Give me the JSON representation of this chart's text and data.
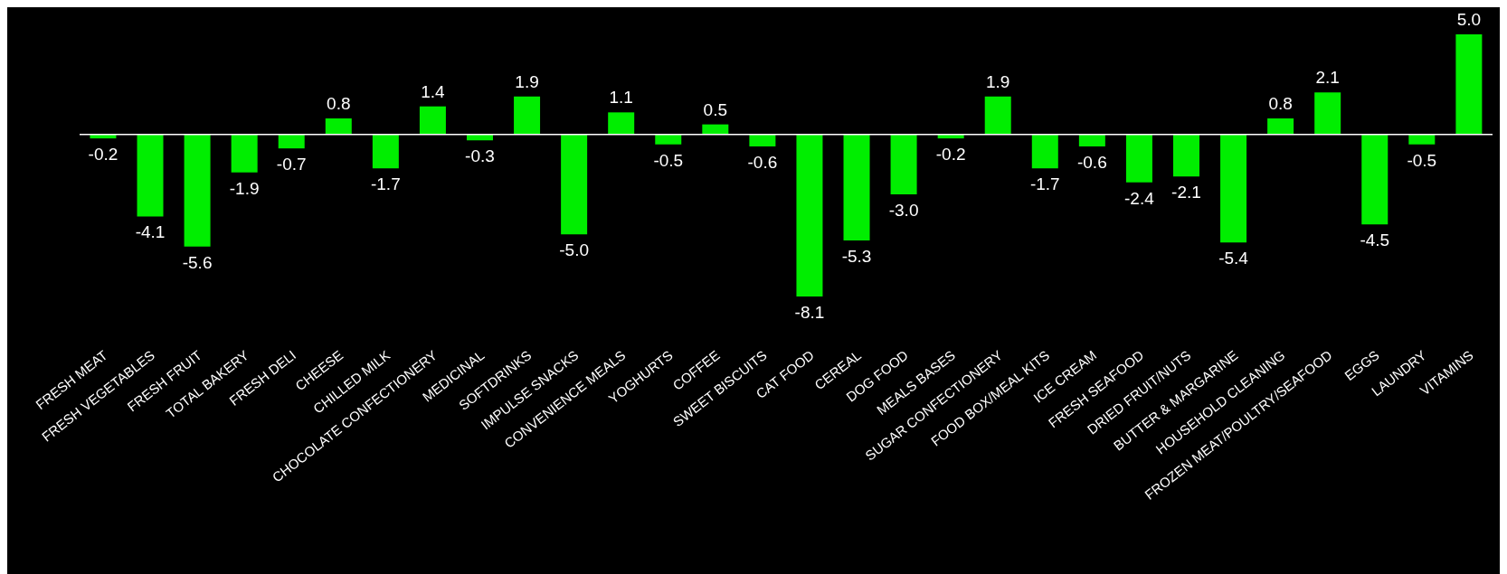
{
  "chart_data": {
    "type": "bar",
    "categories": [
      "FRESH MEAT",
      "FRESH VEGETABLES",
      "FRESH FRUIT",
      "TOTAL BAKERY",
      "FRESH DELI",
      "CHEESE",
      "CHILLED MILK",
      "CHOCOLATE CONFECTIONERY",
      "MEDICINAL",
      "SOFTDRINKS",
      "IMPULSE SNACKS",
      "CONVENIENCE MEALS",
      "YOGHURTS",
      "COFFEE",
      "SWEET BISCUITS",
      "CAT FOOD",
      "CEREAL",
      "DOG FOOD",
      "MEALS BASES",
      "SUGAR CONFECTIONERY",
      "FOOD BOX/MEAL KITS",
      "ICE CREAM",
      "FRESH SEAFOOD",
      "DRIED FRUIT/NUTS",
      "BUTTER & MARGARINE",
      "HOUSEHOLD CLEANING",
      "FROZEN MEAT/POULTRY/SEAFOOD",
      "EGGS",
      "LAUNDRY",
      "VITAMINS"
    ],
    "values": [
      -0.2,
      -4.1,
      -5.6,
      -1.9,
      -0.7,
      0.8,
      -1.7,
      1.4,
      -0.3,
      1.9,
      -5.0,
      1.1,
      -0.5,
      0.5,
      -0.6,
      -8.1,
      -5.3,
      -3.0,
      -0.2,
      1.9,
      -1.7,
      -0.6,
      -2.4,
      -2.1,
      -5.4,
      0.8,
      2.1,
      -4.5,
      -0.5,
      5.0
    ],
    "value_labels": [
      "-0.2",
      "-4.1",
      "-5.6",
      "-1.9",
      "-0.7",
      "0.8",
      "-1.7",
      "1.4",
      "-0.3",
      "1.9",
      "-5.0",
      "1.1",
      "-0.5",
      "0.5",
      "-0.6",
      "-8.1",
      "-5.3",
      "-3.0",
      "-0.2",
      "1.9",
      "-1.7",
      "-0.6",
      "-2.4",
      "-2.1",
      "-5.4",
      "0.8",
      "2.1",
      "-4.5",
      "-0.5",
      "5.0"
    ],
    "color": "#00ee00",
    "grid": false,
    "legend": false
  }
}
